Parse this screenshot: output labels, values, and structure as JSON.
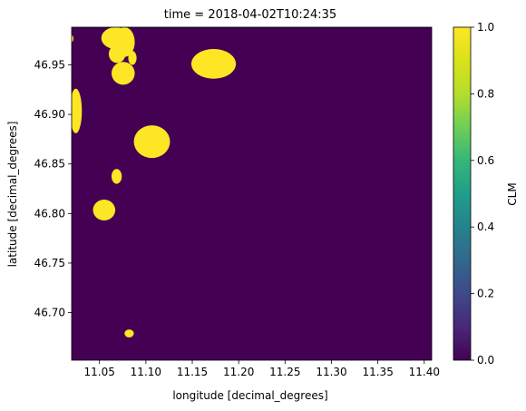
{
  "chart_data": {
    "type": "heatmap",
    "title": "time = 2018-04-02T10:24:35",
    "xlabel": "longitude [decimal_degrees]",
    "ylabel": "latitude [decimal_degrees]",
    "xlim": [
      11.02,
      11.408
    ],
    "ylim": [
      46.652,
      46.988
    ],
    "xticks": [
      11.05,
      11.1,
      11.15,
      11.2,
      11.25,
      11.3,
      11.35,
      11.4
    ],
    "xtick_labels": [
      "11.05",
      "11.10",
      "11.15",
      "11.20",
      "11.25",
      "11.30",
      "11.35",
      "11.40"
    ],
    "yticks": [
      46.7,
      46.75,
      46.8,
      46.85,
      46.9,
      46.95
    ],
    "ytick_labels": [
      "46.70",
      "46.75",
      "46.80",
      "46.85",
      "46.90",
      "46.95"
    ],
    "background_value": 0.0,
    "cloud_value": 1.0,
    "cloud_regions": [
      {
        "lon": [
          11.018,
          11.022
        ],
        "lat": [
          46.973,
          46.98
        ],
        "value": 1.0
      },
      {
        "lon": [
          11.052,
          11.083
        ],
        "lat": [
          46.966,
          46.988
        ],
        "value": 1.0
      },
      {
        "lon": [
          11.06,
          11.078
        ],
        "lat": [
          46.952,
          46.97
        ],
        "value": 1.0
      },
      {
        "lon": [
          11.066,
          11.088
        ],
        "lat": [
          46.958,
          46.988
        ],
        "value": 1.0
      },
      {
        "lon": [
          11.081,
          11.09
        ],
        "lat": [
          46.95,
          46.964
        ],
        "value": 1.0
      },
      {
        "lon": [
          11.063,
          11.088
        ],
        "lat": [
          46.93,
          46.953
        ],
        "value": 1.0
      },
      {
        "lon": [
          11.149,
          11.197
        ],
        "lat": [
          46.936,
          46.966
        ],
        "value": 1.0
      },
      {
        "lon": [
          11.018,
          11.031
        ],
        "lat": [
          46.881,
          46.926
        ],
        "value": 1.0
      },
      {
        "lon": [
          11.087,
          11.126
        ],
        "lat": [
          46.856,
          46.889
        ],
        "value": 1.0
      },
      {
        "lon": [
          11.063,
          11.074
        ],
        "lat": [
          46.83,
          46.845
        ],
        "value": 1.0
      },
      {
        "lon": [
          11.043,
          11.067
        ],
        "lat": [
          46.793,
          46.814
        ],
        "value": 1.0
      },
      {
        "lon": [
          11.077,
          11.087
        ],
        "lat": [
          46.675,
          46.683
        ],
        "value": 1.0
      }
    ],
    "colorbar": {
      "label": "CLM",
      "colormap": "viridis",
      "range": [
        0.0,
        1.0
      ],
      "ticks": [
        0.0,
        0.2,
        0.4,
        0.6,
        0.8,
        1.0
      ],
      "tick_labels": [
        "0.0",
        "0.2",
        "0.4",
        "0.6",
        "0.8",
        "1.0"
      ]
    },
    "colors": {
      "background": "#440154",
      "cloud": "#fde725"
    }
  }
}
